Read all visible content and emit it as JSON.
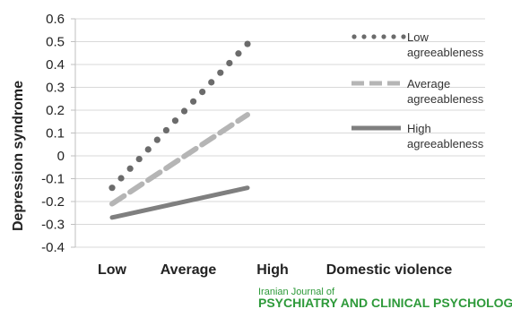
{
  "chart_data": {
    "type": "line",
    "categories": [
      "Low",
      "Average",
      "High"
    ],
    "x_axis_extra_label": "Domestic  violence",
    "ylabel": "Depression syndrome",
    "ylim": [
      -0.4,
      0.6
    ],
    "yticks": [
      "0.6",
      "0.5",
      "0.4",
      "0.3",
      "0.2",
      "0.1",
      "0",
      "-0.1",
      "-0.2",
      "-0.3",
      "-0.4"
    ],
    "ytick_values": [
      0.6,
      0.5,
      0.4,
      0.3,
      0.2,
      0.1,
      0,
      -0.1,
      -0.2,
      -0.3,
      -0.4
    ],
    "grid": true,
    "legend_position": "right",
    "series": [
      {
        "name_lines": [
          "Low",
          "agreeableness"
        ],
        "style": "dotted",
        "color": "#6b6b6b",
        "x": [
          0,
          2
        ],
        "values": [
          -0.14,
          0.49
        ]
      },
      {
        "name_lines": [
          "Average",
          "agreeableness"
        ],
        "style": "dashed",
        "color": "#b5b5b5",
        "x": [
          0,
          2
        ],
        "values": [
          -0.21,
          0.18
        ]
      },
      {
        "name_lines": [
          "High",
          "agreeableness"
        ],
        "style": "solid",
        "color": "#7f7f7f",
        "x": [
          0,
          2
        ],
        "values": [
          -0.27,
          -0.14
        ]
      }
    ]
  },
  "footer": {
    "journal_small": "Iranian Journal of",
    "journal_large": "PSYCHIATRY AND CLINICAL PSYCHOLOGY"
  }
}
